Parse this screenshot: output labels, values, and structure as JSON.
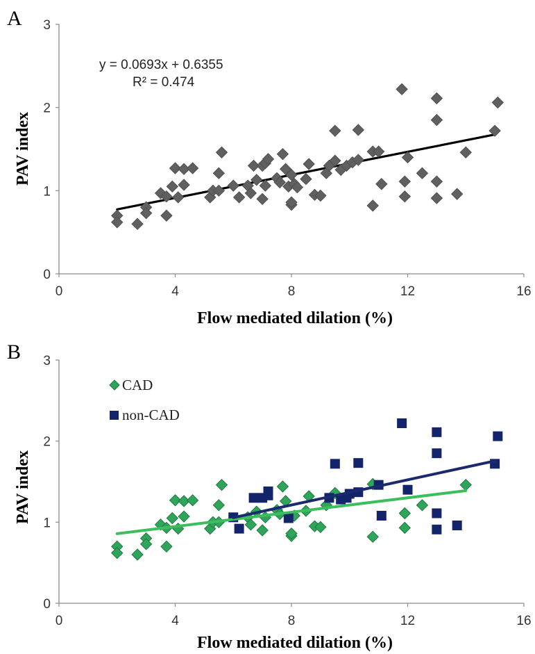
{
  "chart_data": [
    {
      "panel": "A",
      "type": "scatter",
      "xlabel": "Flow mediated dilation (%)",
      "ylabel": "PAV index",
      "xlim": [
        0,
        16
      ],
      "ylim": [
        0,
        3
      ],
      "xticks": [
        "0",
        "4",
        "8",
        "12",
        "16"
      ],
      "yticks": [
        "0",
        "1",
        "2",
        "3"
      ],
      "grid": false,
      "legend": "none",
      "equation": "y = 0.0693x + 0.6355",
      "r_squared": "R² = 0.474",
      "colors": {
        "points": "#606060",
        "line": "#000000"
      },
      "series": [
        {
          "marker": "diamond",
          "points": [
            [
              2.0,
              0.7
            ],
            [
              2.0,
              0.62
            ],
            [
              2.7,
              0.6
            ],
            [
              3.0,
              0.8
            ],
            [
              3.0,
              0.73
            ],
            [
              3.5,
              0.97
            ],
            [
              3.7,
              0.93
            ],
            [
              3.7,
              0.7
            ],
            [
              3.9,
              1.05
            ],
            [
              4.0,
              1.27
            ],
            [
              4.1,
              0.92
            ],
            [
              4.3,
              1.26
            ],
            [
              4.3,
              1.07
            ],
            [
              4.6,
              1.27
            ],
            [
              5.2,
              0.92
            ],
            [
              5.3,
              1.0
            ],
            [
              5.5,
              1.0
            ],
            [
              5.5,
              1.21
            ],
            [
              5.6,
              1.46
            ],
            [
              6.0,
              1.06
            ],
            [
              6.2,
              0.92
            ],
            [
              6.5,
              1.06
            ],
            [
              6.6,
              0.97
            ],
            [
              6.7,
              1.3
            ],
            [
              6.8,
              1.13
            ],
            [
              7.0,
              1.3
            ],
            [
              7.0,
              0.9
            ],
            [
              7.1,
              1.06
            ],
            [
              7.1,
              1.33
            ],
            [
              7.2,
              1.38
            ],
            [
              7.5,
              1.15
            ],
            [
              7.6,
              1.1
            ],
            [
              7.7,
              1.44
            ],
            [
              7.8,
              1.26
            ],
            [
              7.9,
              1.05
            ],
            [
              8.0,
              0.83
            ],
            [
              8.0,
              0.86
            ],
            [
              8.0,
              1.19
            ],
            [
              8.1,
              1.08
            ],
            [
              8.2,
              1.04
            ],
            [
              8.5,
              1.14
            ],
            [
              8.6,
              1.32
            ],
            [
              8.8,
              0.95
            ],
            [
              9.0,
              0.94
            ],
            [
              9.2,
              1.21
            ],
            [
              9.3,
              1.3
            ],
            [
              9.5,
              1.36
            ],
            [
              9.5,
              1.72
            ],
            [
              9.7,
              1.25
            ],
            [
              9.9,
              1.3
            ],
            [
              10.1,
              1.34
            ],
            [
              10.3,
              1.37
            ],
            [
              10.3,
              1.73
            ],
            [
              10.8,
              0.82
            ],
            [
              10.8,
              1.47
            ],
            [
              11.0,
              1.47
            ],
            [
              11.1,
              1.08
            ],
            [
              11.8,
              2.22
            ],
            [
              11.9,
              1.11
            ],
            [
              11.9,
              0.93
            ],
            [
              12.0,
              1.4
            ],
            [
              12.5,
              1.21
            ],
            [
              13.0,
              2.11
            ],
            [
              13.0,
              1.85
            ],
            [
              13.0,
              1.11
            ],
            [
              13.0,
              0.91
            ],
            [
              13.7,
              0.96
            ],
            [
              14.0,
              1.46
            ],
            [
              15.0,
              1.72
            ],
            [
              15.1,
              2.06
            ]
          ]
        }
      ],
      "trendline": {
        "slope": 0.0693,
        "intercept": 0.6355,
        "x_range": [
          2,
          15
        ]
      }
    },
    {
      "panel": "B",
      "type": "scatter",
      "xlabel": "Flow mediated dilation (%)",
      "ylabel": "PAV index",
      "xlim": [
        0,
        16
      ],
      "ylim": [
        0,
        3
      ],
      "xticks": [
        "0",
        "4",
        "8",
        "12",
        "16"
      ],
      "yticks": [
        "0",
        "1",
        "2",
        "3"
      ],
      "grid": false,
      "legend": "top-left",
      "series": [
        {
          "name": "CAD",
          "marker": "diamond",
          "color": "#2ea55a",
          "line_color": "#3dbe5e",
          "trendline": {
            "slope": 0.0442,
            "intercept": 0.77,
            "x_range": [
              2,
              14
            ]
          },
          "points": [
            [
              2.0,
              0.7
            ],
            [
              2.0,
              0.62
            ],
            [
              2.7,
              0.6
            ],
            [
              3.0,
              0.8
            ],
            [
              3.0,
              0.73
            ],
            [
              3.5,
              0.97
            ],
            [
              3.7,
              0.93
            ],
            [
              3.7,
              0.7
            ],
            [
              3.9,
              1.05
            ],
            [
              4.0,
              1.27
            ],
            [
              4.1,
              0.92
            ],
            [
              4.3,
              1.26
            ],
            [
              4.3,
              1.07
            ],
            [
              4.6,
              1.27
            ],
            [
              5.2,
              0.92
            ],
            [
              5.3,
              1.0
            ],
            [
              5.5,
              1.0
            ],
            [
              5.5,
              1.21
            ],
            [
              5.6,
              1.46
            ],
            [
              6.5,
              1.06
            ],
            [
              6.6,
              0.97
            ],
            [
              6.8,
              1.13
            ],
            [
              7.0,
              0.9
            ],
            [
              7.1,
              1.06
            ],
            [
              7.5,
              1.15
            ],
            [
              7.6,
              1.1
            ],
            [
              7.7,
              1.44
            ],
            [
              7.8,
              1.26
            ],
            [
              8.0,
              0.83
            ],
            [
              8.0,
              0.86
            ],
            [
              8.1,
              1.08
            ],
            [
              8.5,
              1.14
            ],
            [
              8.6,
              1.32
            ],
            [
              8.8,
              0.95
            ],
            [
              9.0,
              0.94
            ],
            [
              9.2,
              1.21
            ],
            [
              9.5,
              1.36
            ],
            [
              10.8,
              0.82
            ],
            [
              10.8,
              1.47
            ],
            [
              11.9,
              1.11
            ],
            [
              11.9,
              0.93
            ],
            [
              12.5,
              1.21
            ],
            [
              14.0,
              1.46
            ]
          ]
        },
        {
          "name": "non-CAD",
          "marker": "square",
          "color": "#13246b",
          "line_color": "#1b2a6e",
          "trendline": {
            "slope": 0.0777,
            "intercept": 0.59,
            "x_range": [
              6,
              15
            ]
          },
          "points": [
            [
              6.0,
              1.06
            ],
            [
              6.2,
              0.92
            ],
            [
              6.7,
              1.3
            ],
            [
              7.0,
              1.3
            ],
            [
              7.2,
              1.38
            ],
            [
              7.2,
              1.33
            ],
            [
              7.9,
              1.05
            ],
            [
              9.3,
              1.3
            ],
            [
              9.5,
              1.72
            ],
            [
              9.7,
              1.28
            ],
            [
              9.9,
              1.3
            ],
            [
              10.0,
              1.35
            ],
            [
              10.3,
              1.37
            ],
            [
              10.3,
              1.73
            ],
            [
              11.0,
              1.46
            ],
            [
              11.1,
              1.08
            ],
            [
              11.8,
              2.22
            ],
            [
              12.0,
              1.4
            ],
            [
              13.0,
              2.11
            ],
            [
              13.0,
              1.85
            ],
            [
              13.0,
              1.11
            ],
            [
              13.0,
              0.91
            ],
            [
              13.7,
              0.96
            ],
            [
              15.0,
              1.72
            ],
            [
              15.1,
              2.06
            ]
          ]
        }
      ]
    }
  ]
}
